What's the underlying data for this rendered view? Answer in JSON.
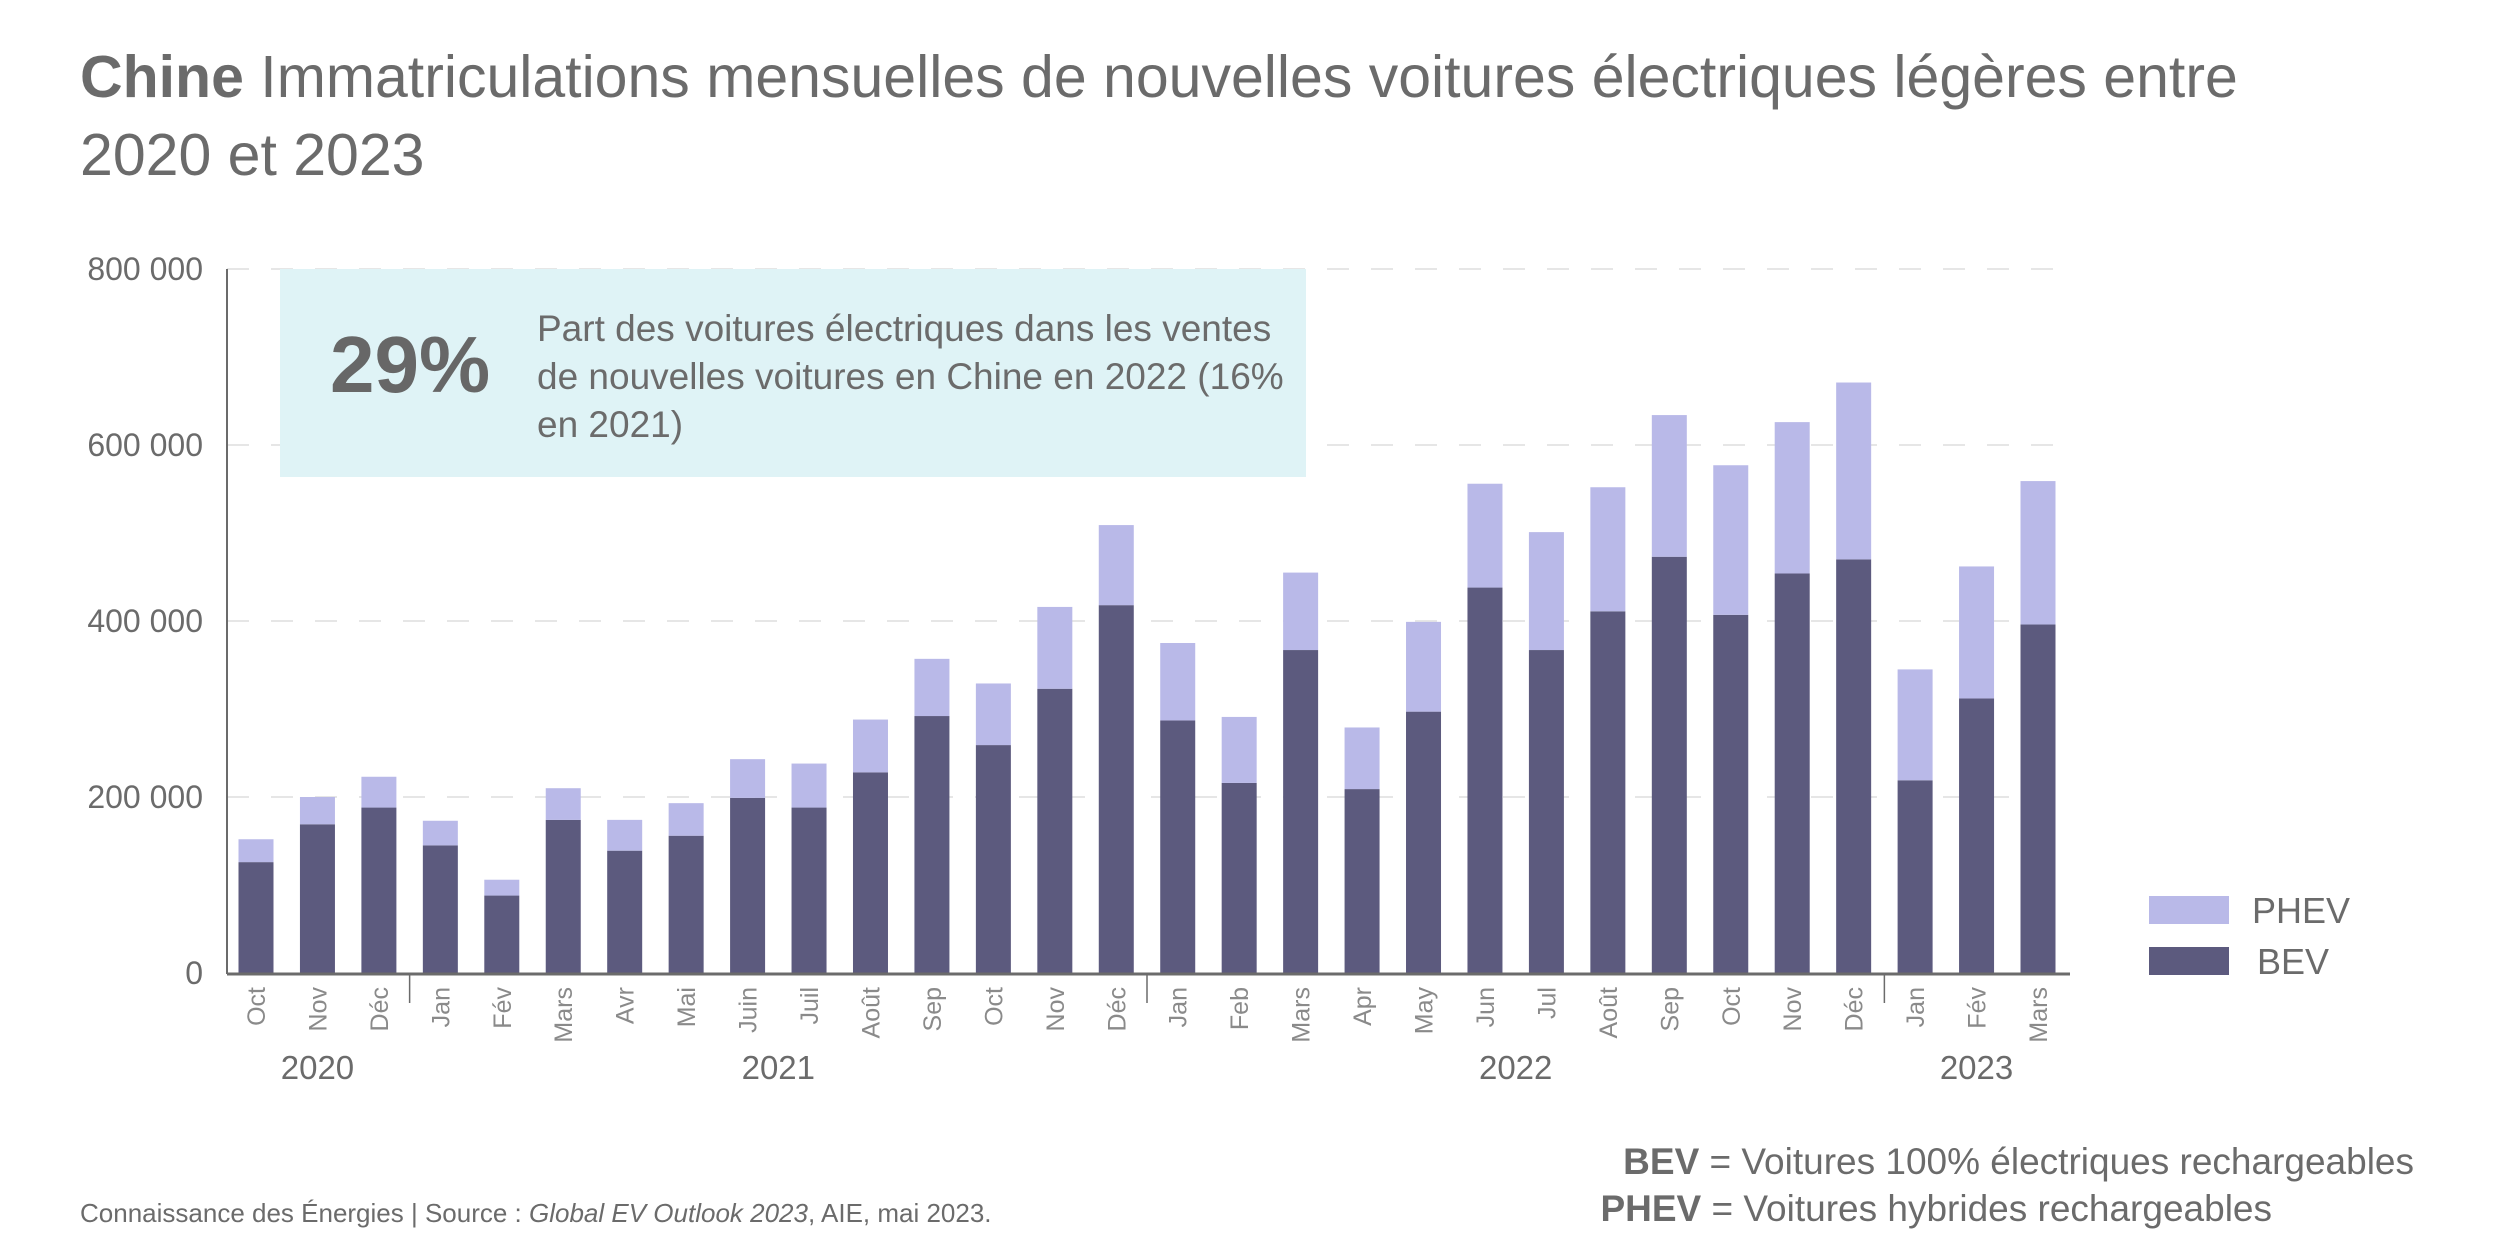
{
  "title": {
    "bold": "Chine",
    "text": " Immatriculations mensuelles de nouvelles voitures électriques légères entre 2020 et 2023"
  },
  "callout": {
    "value": "29%",
    "text": "Part des voitures électriques dans les ventes de nouvelles voitures en Chine en 2022 (16% en 2021)"
  },
  "definitions": [
    {
      "term": "BEV",
      "text": " = Voitures 100% électriques rechargeables"
    },
    {
      "term": "PHEV",
      "text": " = Voitures hybrides rechargeables"
    }
  ],
  "source": {
    "prefix": "Connaissance des Énergies | Source : ",
    "italic": "Global EV Outlook 2023",
    "suffix": ", AIE, mai 2023."
  },
  "colors": {
    "bev": "#5c5a7e",
    "phev": "#b9b9e8",
    "axis": "#6b6b6b",
    "grid": "#e6e6e6",
    "callout_bg": "#dff3f6"
  },
  "chart_data": {
    "type": "bar",
    "stacked": true,
    "title": "Chine Immatriculations mensuelles de nouvelles voitures électriques légères entre 2020 et 2023",
    "xlabel": "",
    "ylabel": "",
    "ylim": [
      0,
      800000
    ],
    "yticks": [
      0,
      200000,
      400000,
      600000,
      800000
    ],
    "ytick_labels": [
      "0",
      "200 000",
      "400 000",
      "600 000",
      "800 000"
    ],
    "grid": true,
    "legend": {
      "position": "right",
      "entries": [
        "PHEV",
        "BEV"
      ]
    },
    "categories": [
      "Oct",
      "Nov",
      "Déc",
      "Jan",
      "Fév",
      "Mars",
      "Avr",
      "Mai",
      "Juin",
      "Juil",
      "Août",
      "Sep",
      "Oct",
      "Nov",
      "Déc",
      "Jan",
      "Feb",
      "Mars",
      "Apr",
      "May",
      "Jun",
      "Jul",
      "Août",
      "Sep",
      "Oct",
      "Nov",
      "Déc",
      "Jan",
      "Fév",
      "Mars"
    ],
    "year_groups": [
      {
        "label": "2020",
        "start": 0,
        "count": 3
      },
      {
        "label": "2021",
        "start": 3,
        "count": 12
      },
      {
        "label": "2022",
        "start": 15,
        "count": 12
      },
      {
        "label": "2023",
        "start": 27,
        "count": 3
      }
    ],
    "series": [
      {
        "name": "BEV",
        "values": [
          126000,
          169000,
          188000,
          145000,
          88000,
          174000,
          139000,
          156000,
          199000,
          188000,
          228000,
          292000,
          259000,
          323000,
          418000,
          287000,
          216000,
          367000,
          209000,
          297000,
          438000,
          367000,
          411000,
          473000,
          407000,
          454000,
          470000,
          219000,
          312000,
          396000
        ]
      },
      {
        "name": "PHEV",
        "values": [
          26000,
          31000,
          35000,
          28000,
          18000,
          36000,
          35000,
          37000,
          44000,
          50000,
          60000,
          65000,
          70000,
          93000,
          91000,
          88000,
          75000,
          88000,
          70000,
          102000,
          118000,
          134000,
          141000,
          161000,
          170000,
          172000,
          201000,
          126000,
          150000,
          163000
        ]
      }
    ]
  }
}
